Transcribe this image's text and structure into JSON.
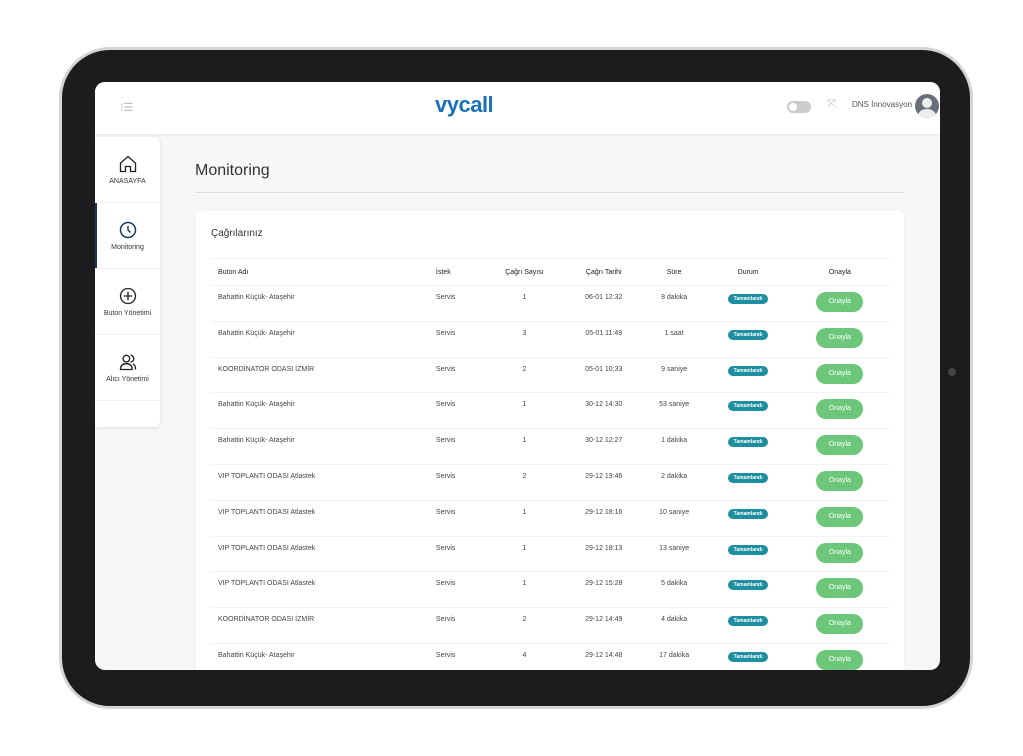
{
  "header": {
    "logo": "vycall",
    "user_name": "DNS İnnovasyon"
  },
  "sidebar": {
    "items": [
      {
        "label": "ANASAYFA",
        "icon": "home-icon"
      },
      {
        "label": "Monitoring",
        "icon": "clock-icon",
        "active": true
      },
      {
        "label": "Buton Yönetimi",
        "icon": "plus-circle-icon"
      },
      {
        "label": "Alıcı Yönetimi",
        "icon": "users-icon"
      }
    ]
  },
  "page": {
    "title": "Monitoring",
    "card_title": "Çağrılarınız"
  },
  "table": {
    "columns": [
      "Buton Adı",
      "İstek",
      "Çağrı Sayısı",
      "Çağrı Tarihi",
      "Süre",
      "Durum",
      "Onayla"
    ],
    "rows": [
      [
        "Bahattin Küçük- Ataşehir",
        "Servis",
        "1",
        "06-01 12:32",
        "8 dakika",
        "Tamamlandı",
        "Onayla"
      ],
      [
        "Bahattin Küçük- Ataşehir",
        "Servis",
        "3",
        "05-01 11:49",
        "1 saat",
        "Tamamlandı",
        "Onayla"
      ],
      [
        "KOORDİNATOR ODASI İZMİR",
        "Servis",
        "2",
        "05-01 10:33",
        "9 saniye",
        "Tamamlandı",
        "Onayla"
      ],
      [
        "Bahattin Küçük- Ataşehir",
        "Servis",
        "1",
        "30-12 14:30",
        "53 saniye",
        "Tamamlandı",
        "Onayla"
      ],
      [
        "Bahattin Küçük- Ataşehir",
        "Servis",
        "1",
        "30-12 12:27",
        "1 dakika",
        "Tamamlandı",
        "Onayla"
      ],
      [
        "VIP TOPLANTI ODASI Atlastek",
        "Servis",
        "2",
        "29-12 19:46",
        "2 dakika",
        "Tamamlandı",
        "Onayla"
      ],
      [
        "VIP TOPLANTI ODASI Atlastek",
        "Servis",
        "1",
        "29-12 18:16",
        "10 saniye",
        "Tamamlandı",
        "Onayla"
      ],
      [
        "VIP TOPLANTI ODASI Atlastek",
        "Servis",
        "1",
        "29-12 18:13",
        "13 saniye",
        "Tamamlandı",
        "Onayla"
      ],
      [
        "VIP TOPLANTI ODASI Atlastek",
        "Servis",
        "1",
        "29-12 15:28",
        "5 dakika",
        "Tamamlandı",
        "Onayla"
      ],
      [
        "KOORDİNATOR ODASI İZMİR",
        "Servis",
        "2",
        "29-12 14:49",
        "4 dakika",
        "Tamamlandı",
        "Onayla"
      ],
      [
        "Bahattin Küçük- Ataşehir",
        "Servis",
        "4",
        "29-12 14:48",
        "17 dakika",
        "Tamamlandı",
        "Onayla"
      ]
    ]
  },
  "colors": {
    "brand": "#1b72b8",
    "badge": "#1e8fa0",
    "approve": "#6cc77a"
  }
}
